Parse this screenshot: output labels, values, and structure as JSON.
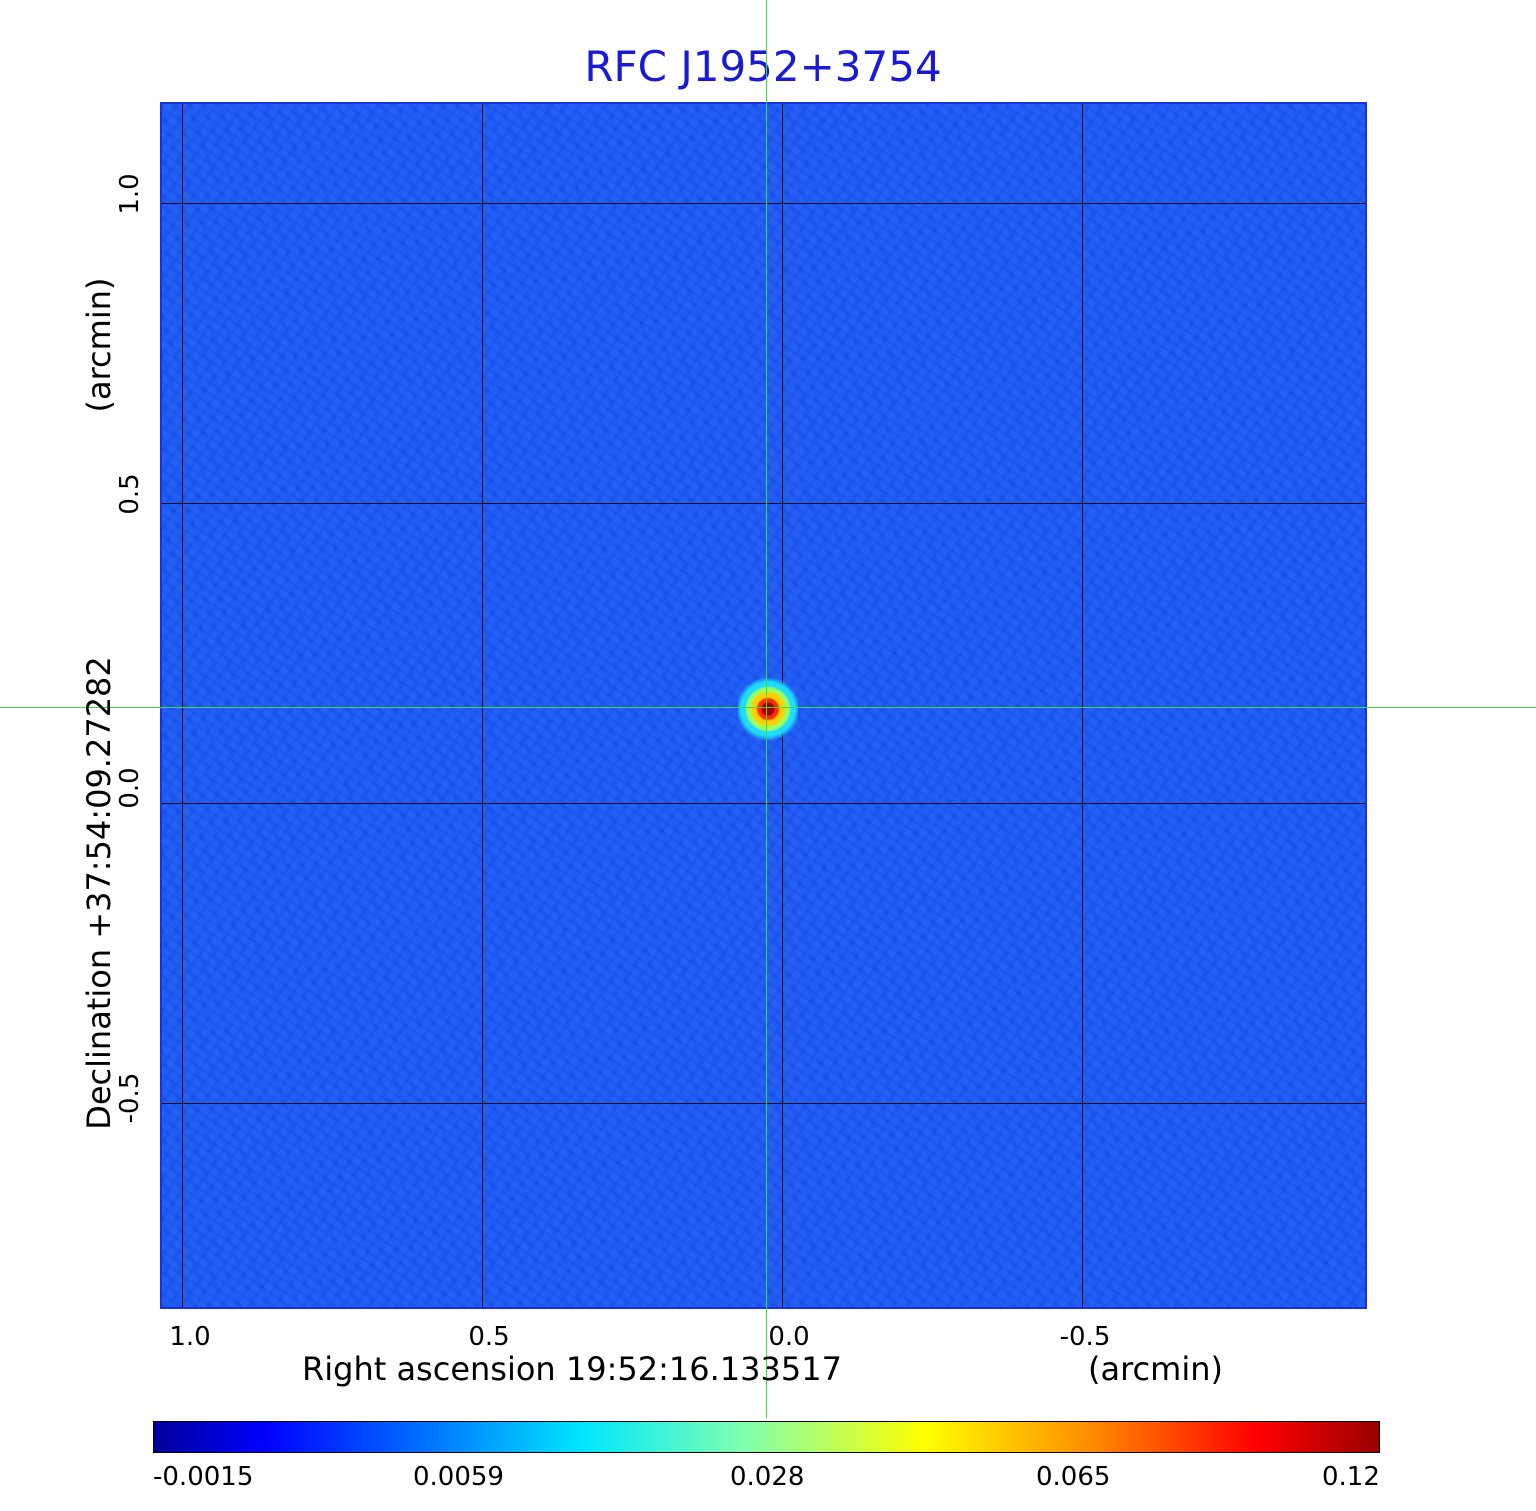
{
  "title": "RFC J1952+3754",
  "x_axis": {
    "label": "Right ascension  19:52:16.133517",
    "unit": "(arcmin)",
    "ticks": [
      "1.0",
      "0.5",
      "0.0",
      "-0.5"
    ]
  },
  "y_axis": {
    "label": "Declination  +37:54:09.27282",
    "unit": "(arcmin)",
    "ticks": [
      "1.0",
      "0.5",
      "0.0",
      "-0.5"
    ]
  },
  "colorbar": {
    "labels": [
      "-0.0015",
      "0.0059",
      "0.028",
      "0.065",
      "0.12"
    ],
    "colormap": "jet"
  },
  "colors": {
    "title": "#1a1ad6",
    "background_map": "#1e5cf2",
    "crosshair": "#3cdc3c",
    "grid": "#111111"
  }
}
